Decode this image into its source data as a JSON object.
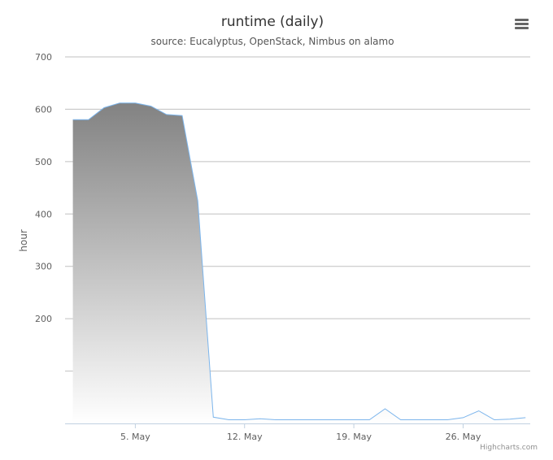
{
  "chart_data": {
    "type": "area",
    "title": "runtime (daily)",
    "subtitle": "source: Eucalyptus, OpenStack, Nimbus on alamo",
    "ylabel": "hour",
    "xlabel": "",
    "credits": "Highcharts.com",
    "ylim": [
      0,
      700
    ],
    "yticks": [
      "200",
      "300",
      "400",
      "500",
      "600",
      "700"
    ],
    "ytick_values": [
      200,
      300,
      400,
      500,
      600,
      700
    ],
    "grid_values": [
      100,
      200,
      300,
      400,
      500,
      600,
      700
    ],
    "xlim_day_of_may": [
      0.5,
      30.3
    ],
    "xticks": [
      {
        "label": "5. May",
        "day": 5
      },
      {
        "label": "12. May",
        "day": 12
      },
      {
        "label": "19. May",
        "day": 19
      },
      {
        "label": "26. May",
        "day": 26
      }
    ],
    "series": [
      {
        "x_day_of_may": [
          1,
          2,
          3,
          4,
          5,
          6,
          7,
          8,
          9,
          10,
          11,
          12,
          13,
          14,
          15,
          16,
          17,
          18,
          19,
          20,
          21,
          22,
          23,
          24,
          25,
          26,
          27,
          28,
          29,
          30
        ],
        "values": [
          580,
          580,
          603,
          612,
          612,
          606,
          590,
          588,
          425,
          12,
          7,
          7,
          9,
          7,
          7,
          7,
          7,
          7,
          7,
          7,
          28,
          7,
          7,
          7,
          7,
          11,
          24,
          7,
          8,
          11
        ]
      }
    ],
    "colors": {
      "line": "#7cb5ec",
      "fill_top": "#828282",
      "fill_bottom": "#ffffff",
      "grid": "#c0c0c0",
      "axis": "#c0d0e0"
    }
  },
  "menu_icon": "hamburger-menu-icon"
}
